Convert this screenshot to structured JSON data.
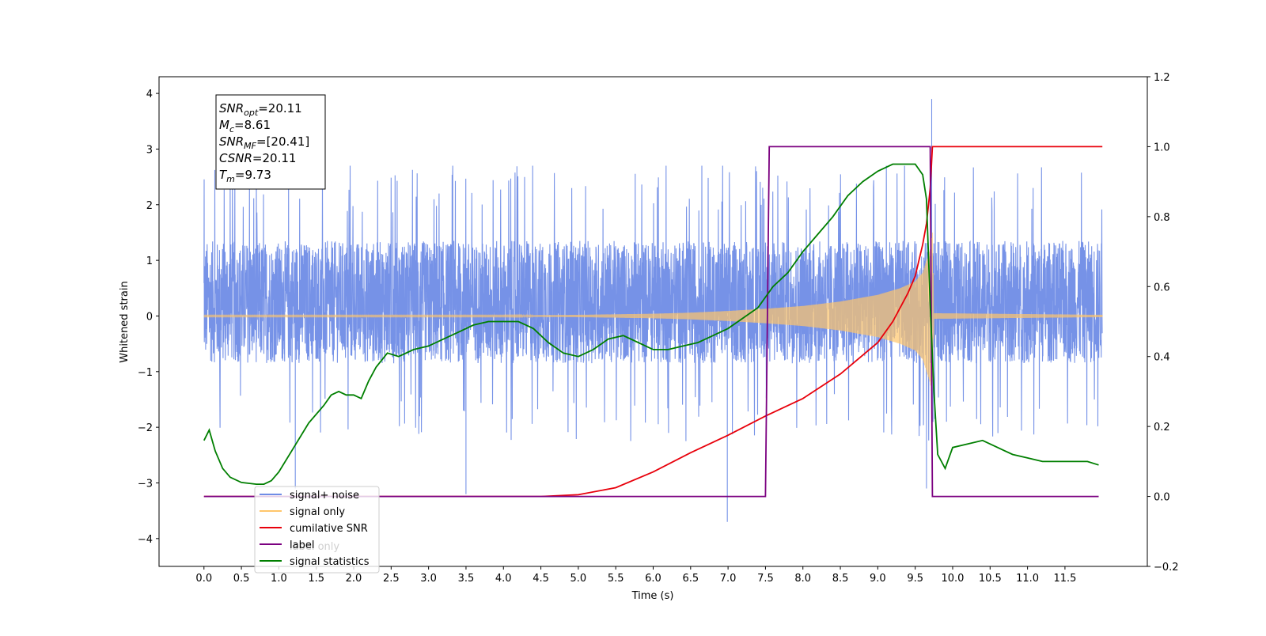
{
  "chart_data": {
    "type": "line",
    "xlabel": "Time (s)",
    "ylabel_left": "Whitened strain",
    "xlim": [
      -0.6,
      12.6
    ],
    "ylim_left": [
      -4.5,
      4.3
    ],
    "ylim_right": [
      -0.2,
      1.2
    ],
    "x_ticks": [
      0.0,
      0.5,
      1.0,
      1.5,
      2.0,
      2.5,
      3.0,
      3.5,
      4.0,
      4.5,
      5.0,
      5.5,
      6.0,
      6.5,
      7.0,
      7.5,
      8.0,
      8.5,
      9.0,
      9.5,
      10.0,
      10.5,
      11.0,
      11.5
    ],
    "x_tick_labels": [
      "0.0",
      "0.5",
      "1.0",
      "1.5",
      "2.0",
      "2.5",
      "3.0",
      "3.5",
      "4.0",
      "4.5",
      "5.0",
      "5.5",
      "6.0",
      "6.5",
      "7.0",
      "7.5",
      "8.0",
      "8.5",
      "9.0",
      "9.5",
      "10.0",
      "10.5",
      "11.0",
      "11.5"
    ],
    "y_left_ticks": [
      4,
      3,
      2,
      1,
      0,
      -1,
      -2,
      -3,
      -4
    ],
    "y_left_tick_labels": [
      "4",
      "3",
      "2",
      "1",
      "0",
      "−1",
      "−2",
      "−3",
      "−4"
    ],
    "y_right_ticks": [
      1.2,
      1.0,
      0.8,
      0.6,
      0.4,
      0.2,
      0.0,
      -0.2
    ],
    "y_right_tick_labels": [
      "1.2",
      "1.0",
      "0.8",
      "0.6",
      "0.4",
      "0.2",
      "0.0",
      "−0.2"
    ],
    "info_box": [
      {
        "base": "SNR",
        "sub": "opt",
        "value": "=20.11"
      },
      {
        "base": "M",
        "sub": "c",
        "value": "=8.61"
      },
      {
        "base": "SNR",
        "sub": "MF",
        "value": "=[20.41]"
      },
      {
        "base": "CSNR",
        "sub": "",
        "value": "=20.11"
      },
      {
        "base": "T",
        "sub": "m",
        "value": "=9.73"
      }
    ],
    "legend": {
      "placement": "lower-left",
      "entries": [
        {
          "label": "signal+ noise",
          "color": "#6f8ce6"
        },
        {
          "label": "signal only",
          "color": "#ffc66b"
        },
        {
          "label": "cumilative SNR",
          "color": "#e8000b"
        },
        {
          "label": "label",
          "color": "#7b0080"
        },
        {
          "label": "signal statistics",
          "color": "#007f00"
        }
      ],
      "hidden_text": [
        "label only"
      ]
    },
    "series": [
      {
        "name": "signal+ noise",
        "axis": "left",
        "color": "#6f8ce6",
        "x_range": [
          0.0,
          12.0
        ],
        "typical_range": [
          -1.6,
          2.2
        ],
        "peaks": [
          {
            "x": 9.72,
            "y": 3.9
          },
          {
            "x": 6.99,
            "y": -3.7
          },
          {
            "x": 3.5,
            "y": -3.2
          },
          {
            "x": 1.22,
            "y": -3.1
          },
          {
            "x": 9.65,
            "y": -3.1
          }
        ]
      },
      {
        "name": "signal only",
        "axis": "left",
        "color": "#ffc66b",
        "x_range": [
          0.0,
          12.0
        ],
        "envelope": {
          "x": [
            0.0,
            2.0,
            4.0,
            5.0,
            6.0,
            6.5,
            7.0,
            7.5,
            8.0,
            8.5,
            9.0,
            9.3,
            9.5,
            9.6,
            9.7,
            9.73,
            9.75,
            12.0
          ],
          "amp": [
            0.01,
            0.01,
            0.01,
            0.02,
            0.04,
            0.06,
            0.09,
            0.13,
            0.18,
            0.26,
            0.38,
            0.5,
            0.62,
            0.78,
            1.2,
            1.5,
            0.05,
            0.02
          ]
        }
      },
      {
        "name": "cumilative SNR",
        "axis": "right",
        "color": "#e8000b",
        "x": [
          0.0,
          4.5,
          5.0,
          5.5,
          6.0,
          6.5,
          7.0,
          7.5,
          8.0,
          8.5,
          9.0,
          9.2,
          9.4,
          9.5,
          9.6,
          9.65,
          9.7,
          9.73,
          12.0
        ],
        "y": [
          0.0,
          0.0,
          0.005,
          0.025,
          0.07,
          0.125,
          0.175,
          0.23,
          0.28,
          0.35,
          0.44,
          0.5,
          0.58,
          0.63,
          0.72,
          0.78,
          0.88,
          1.0,
          1.0
        ]
      },
      {
        "name": "label",
        "axis": "right",
        "color": "#7b0080",
        "x": [
          0.0,
          7.5,
          7.55,
          9.7,
          9.73,
          11.95
        ],
        "y": [
          0.0,
          0.0,
          1.0,
          1.0,
          0.0,
          0.0
        ]
      },
      {
        "name": "signal statistics",
        "axis": "right",
        "color": "#007f00",
        "x": [
          0.0,
          0.07,
          0.15,
          0.25,
          0.35,
          0.5,
          0.7,
          0.8,
          0.9,
          1.0,
          1.2,
          1.4,
          1.6,
          1.7,
          1.8,
          1.9,
          2.0,
          2.1,
          2.2,
          2.3,
          2.45,
          2.6,
          2.8,
          3.0,
          3.2,
          3.4,
          3.6,
          3.8,
          4.0,
          4.2,
          4.4,
          4.6,
          4.8,
          5.0,
          5.2,
          5.4,
          5.6,
          5.8,
          6.0,
          6.2,
          6.4,
          6.6,
          6.8,
          7.0,
          7.2,
          7.4,
          7.6,
          7.8,
          8.0,
          8.2,
          8.4,
          8.6,
          8.8,
          9.0,
          9.2,
          9.4,
          9.5,
          9.6,
          9.65,
          9.7,
          9.75,
          9.8,
          9.9,
          10.0,
          10.2,
          10.4,
          10.6,
          10.8,
          11.0,
          11.2,
          11.4,
          11.6,
          11.8,
          11.95
        ],
        "y": [
          0.16,
          0.19,
          0.13,
          0.08,
          0.055,
          0.04,
          0.035,
          0.035,
          0.045,
          0.07,
          0.14,
          0.21,
          0.26,
          0.29,
          0.3,
          0.29,
          0.29,
          0.28,
          0.33,
          0.37,
          0.41,
          0.4,
          0.42,
          0.43,
          0.45,
          0.47,
          0.49,
          0.5,
          0.5,
          0.5,
          0.48,
          0.44,
          0.41,
          0.4,
          0.42,
          0.45,
          0.46,
          0.44,
          0.42,
          0.42,
          0.43,
          0.44,
          0.46,
          0.48,
          0.51,
          0.54,
          0.6,
          0.64,
          0.7,
          0.75,
          0.8,
          0.86,
          0.9,
          0.93,
          0.95,
          0.95,
          0.95,
          0.92,
          0.85,
          0.55,
          0.3,
          0.12,
          0.08,
          0.14,
          0.15,
          0.16,
          0.14,
          0.12,
          0.11,
          0.1,
          0.1,
          0.1,
          0.1,
          0.09
        ]
      }
    ]
  }
}
